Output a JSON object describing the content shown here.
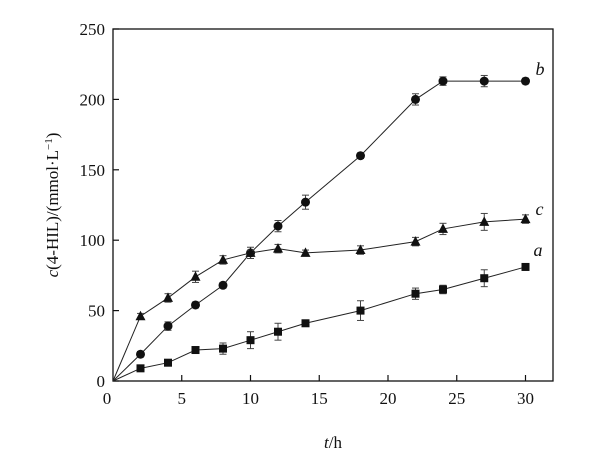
{
  "chart_data": {
    "type": "line",
    "x_unit": "h",
    "y_unit": "mmol·L⁻¹",
    "xlim": [
      0,
      32
    ],
    "ylim": [
      0,
      250
    ],
    "xticks": [
      5,
      10,
      15,
      20,
      25,
      30
    ],
    "yticks": [
      0,
      50,
      100,
      150,
      200,
      250
    ],
    "origin_label": "0",
    "grid": false,
    "axis_titles": {
      "y_pre": "c",
      "y_main": "(4-HIL)/(mmol·L",
      "y_sup": "−1",
      "y_post": ")",
      "x_pre": "t",
      "x_post": "/h"
    },
    "series": [
      {
        "name": "a",
        "marker": "square",
        "x": [
          0,
          2,
          4,
          6,
          8,
          10,
          12,
          14,
          18,
          22,
          24,
          27,
          30
        ],
        "y": [
          0,
          9,
          13,
          22,
          23,
          29,
          35,
          41,
          50,
          62,
          65,
          73,
          81
        ],
        "err": [
          0,
          2,
          2,
          2,
          4,
          6,
          6,
          2,
          7,
          4,
          3,
          6,
          2
        ]
      },
      {
        "name": "b",
        "marker": "circle",
        "x": [
          0,
          2,
          4,
          6,
          8,
          10,
          12,
          14,
          18,
          22,
          24,
          27,
          30
        ],
        "y": [
          0,
          19,
          39,
          54,
          68,
          91,
          110,
          127,
          160,
          200,
          213,
          213,
          213
        ],
        "err": [
          0,
          2,
          3,
          2,
          2,
          4,
          4,
          5,
          2,
          4,
          3,
          4,
          2
        ]
      },
      {
        "name": "c",
        "marker": "triangle",
        "x": [
          0,
          2,
          4,
          6,
          8,
          10,
          12,
          14,
          18,
          22,
          24,
          27,
          30
        ],
        "y": [
          0,
          46,
          59,
          74,
          86,
          91,
          94,
          91,
          93,
          99,
          108,
          113,
          115
        ],
        "err": [
          0,
          2,
          3,
          4,
          3,
          2,
          3,
          2,
          3,
          3,
          4,
          6,
          3
        ]
      }
    ]
  }
}
